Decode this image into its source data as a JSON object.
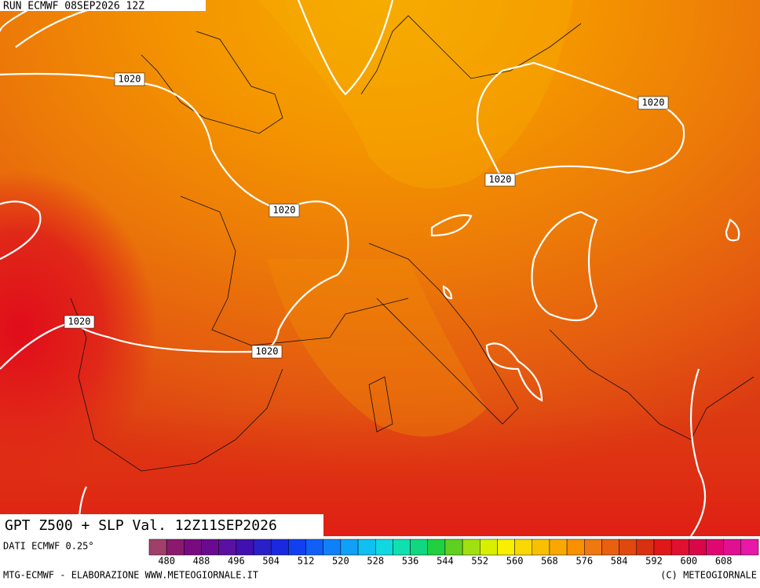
{
  "header": {
    "run": "RUN ECMWF 08SEP2026 12Z"
  },
  "map": {
    "title": "GPT Z500 + SLP Val. 12Z11SEP2026",
    "isobar_labels": [
      "1020",
      "1020",
      "1020",
      "1020",
      "1020",
      "1020"
    ]
  },
  "legend": {
    "source": "DATI ECMWF 0.25°",
    "labels": [
      480,
      488,
      496,
      504,
      512,
      520,
      528,
      536,
      544,
      552,
      560,
      568,
      576,
      584,
      592,
      600,
      608
    ],
    "colors": [
      "#a0406a",
      "#8a1a6e",
      "#7a0a80",
      "#6a0a90",
      "#5a10a0",
      "#4010b0",
      "#2a20c8",
      "#1a28e0",
      "#1040f0",
      "#1060f8",
      "#1080f8",
      "#10a0f8",
      "#10c0f0",
      "#10d8e0",
      "#10e0b0",
      "#10d880",
      "#20d040",
      "#60d020",
      "#a0e010",
      "#d8f000",
      "#f8f000",
      "#f8d800",
      "#f8c000",
      "#f8a800",
      "#f89000",
      "#f07810",
      "#e86010",
      "#e04810",
      "#d83010",
      "#e01818",
      "#e01030",
      "#d80848",
      "#e00870",
      "#e01090",
      "#e818a8"
    ]
  },
  "footer": {
    "left": "MTG-ECMWF - ELABORAZIONE WWW.METEOGIORNALE.IT",
    "right": "(C) METEOGIORNALE"
  }
}
